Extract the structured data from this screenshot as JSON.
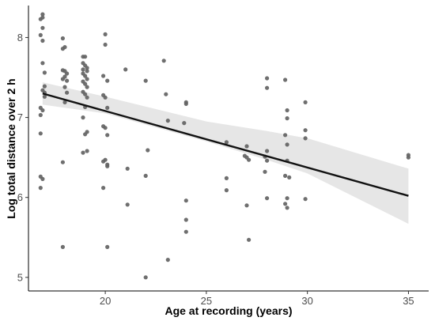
{
  "chart_data": {
    "type": "scatter",
    "title": "",
    "xlabel": "Age at recording (years)",
    "ylabel": "Log total distance over 2 h",
    "xlim": [
      16.2,
      36.0
    ],
    "ylim": [
      4.83,
      8.4
    ],
    "x_ticks": [
      20,
      25,
      30,
      35
    ],
    "y_ticks": [
      5,
      6,
      7,
      8
    ],
    "x_tick_labels": [
      "20",
      "25",
      "30",
      "35"
    ],
    "y_tick_labels": [
      "5",
      "6",
      "7",
      "8"
    ],
    "grid": false,
    "legend": "none",
    "point_color": "#636363",
    "line_color": "#111111",
    "band_color": "#e6e6e6",
    "points": [
      [
        16.9,
        8.29
      ],
      [
        16.9,
        8.25
      ],
      [
        16.8,
        8.23
      ],
      [
        16.9,
        8.12
      ],
      [
        16.8,
        8.03
      ],
      [
        16.9,
        7.96
      ],
      [
        16.9,
        7.68
      ],
      [
        17.0,
        7.56
      ],
      [
        17.0,
        7.39
      ],
      [
        16.9,
        7.34
      ],
      [
        17.0,
        7.31
      ],
      [
        17.0,
        7.26
      ],
      [
        16.8,
        7.12
      ],
      [
        16.9,
        7.09
      ],
      [
        16.8,
        7.03
      ],
      [
        16.8,
        6.8
      ],
      [
        16.8,
        6.26
      ],
      [
        16.9,
        6.23
      ],
      [
        16.8,
        6.12
      ],
      [
        17.9,
        7.99
      ],
      [
        18.0,
        7.88
      ],
      [
        17.9,
        7.86
      ],
      [
        17.9,
        7.59
      ],
      [
        18.0,
        7.58
      ],
      [
        18.1,
        7.55
      ],
      [
        18.0,
        7.51
      ],
      [
        17.9,
        7.48
      ],
      [
        18.1,
        7.46
      ],
      [
        18.0,
        7.38
      ],
      [
        18.1,
        7.31
      ],
      [
        18.0,
        7.19
      ],
      [
        17.9,
        6.44
      ],
      [
        17.9,
        5.38
      ],
      [
        18.9,
        7.76
      ],
      [
        19.0,
        7.76
      ],
      [
        18.9,
        7.68
      ],
      [
        19.0,
        7.65
      ],
      [
        19.1,
        7.62
      ],
      [
        18.9,
        7.6
      ],
      [
        19.1,
        7.58
      ],
      [
        18.9,
        7.55
      ],
      [
        19.0,
        7.52
      ],
      [
        19.1,
        7.48
      ],
      [
        18.9,
        7.45
      ],
      [
        19.0,
        7.42
      ],
      [
        19.1,
        7.38
      ],
      [
        18.9,
        7.32
      ],
      [
        19.0,
        7.29
      ],
      [
        19.1,
        7.25
      ],
      [
        19.0,
        7.13
      ],
      [
        18.9,
        7.0
      ],
      [
        19.1,
        6.82
      ],
      [
        19.0,
        6.79
      ],
      [
        19.1,
        6.58
      ],
      [
        18.9,
        6.56
      ],
      [
        20.0,
        8.04
      ],
      [
        20.0,
        7.91
      ],
      [
        19.9,
        7.52
      ],
      [
        20.1,
        7.46
      ],
      [
        19.9,
        7.28
      ],
      [
        20.0,
        7.25
      ],
      [
        20.1,
        7.12
      ],
      [
        19.9,
        6.89
      ],
      [
        20.0,
        6.87
      ],
      [
        20.1,
        6.78
      ],
      [
        20.0,
        6.47
      ],
      [
        19.9,
        6.45
      ],
      [
        20.1,
        6.41
      ],
      [
        20.1,
        6.39
      ],
      [
        19.9,
        6.12
      ],
      [
        20.1,
        5.38
      ],
      [
        21.0,
        7.6
      ],
      [
        21.1,
        6.36
      ],
      [
        21.1,
        5.91
      ],
      [
        22.0,
        7.46
      ],
      [
        22.1,
        6.59
      ],
      [
        22.0,
        6.27
      ],
      [
        22.0,
        5.0
      ],
      [
        22.9,
        7.71
      ],
      [
        23.0,
        7.29
      ],
      [
        23.1,
        6.96
      ],
      [
        23.1,
        5.22
      ],
      [
        24.0,
        7.19
      ],
      [
        24.0,
        7.17
      ],
      [
        23.9,
        6.93
      ],
      [
        24.0,
        5.96
      ],
      [
        24.0,
        5.72
      ],
      [
        24.0,
        5.57
      ],
      [
        26.0,
        6.69
      ],
      [
        26.0,
        6.24
      ],
      [
        26.0,
        6.09
      ],
      [
        27.0,
        6.64
      ],
      [
        26.9,
        6.52
      ],
      [
        27.0,
        6.5
      ],
      [
        27.1,
        6.47
      ],
      [
        27.0,
        5.9
      ],
      [
        27.1,
        5.47
      ],
      [
        28.0,
        7.49
      ],
      [
        28.0,
        7.37
      ],
      [
        28.0,
        6.58
      ],
      [
        27.9,
        6.51
      ],
      [
        28.0,
        6.46
      ],
      [
        27.9,
        6.32
      ],
      [
        28.0,
        5.99
      ],
      [
        28.9,
        7.47
      ],
      [
        29.0,
        7.09
      ],
      [
        29.0,
        6.99
      ],
      [
        28.9,
        6.78
      ],
      [
        29.0,
        6.66
      ],
      [
        29.0,
        6.46
      ],
      [
        28.9,
        6.27
      ],
      [
        29.1,
        6.25
      ],
      [
        29.0,
        5.99
      ],
      [
        28.9,
        5.92
      ],
      [
        29.0,
        5.87
      ],
      [
        29.9,
        7.19
      ],
      [
        29.9,
        6.84
      ],
      [
        29.9,
        6.74
      ],
      [
        29.9,
        5.98
      ],
      [
        35.0,
        6.53
      ],
      [
        35.0,
        6.5
      ]
    ],
    "fit_line": {
      "x": [
        16.9,
        35.0
      ],
      "y": [
        7.3,
        6.02
      ]
    },
    "confidence_band": {
      "x": [
        16.9,
        20.0,
        25.0,
        28.0,
        30.0,
        35.0
      ],
      "upper": [
        7.44,
        7.26,
        6.95,
        6.83,
        6.74,
        6.36
      ],
      "lower": [
        7.16,
        7.05,
        6.7,
        6.47,
        6.3,
        5.67
      ]
    }
  }
}
